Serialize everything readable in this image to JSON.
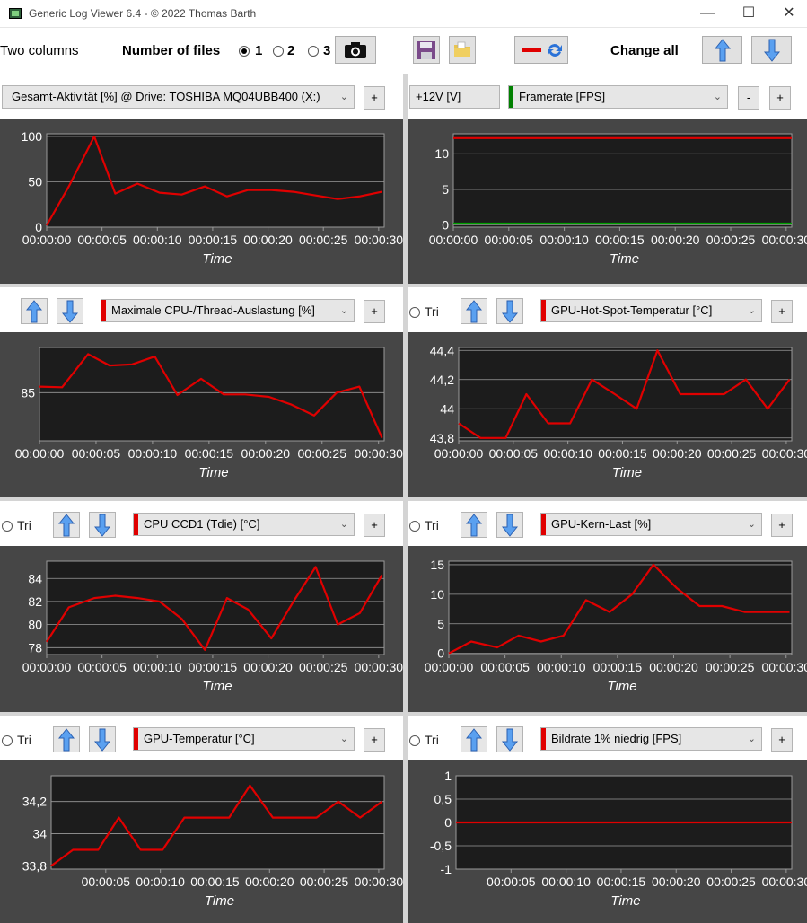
{
  "window": {
    "title": "Generic Log Viewer 6.4 - © 2022 Thomas Barth",
    "minimize": "—",
    "maximize": "☐",
    "close": "✕"
  },
  "toolbar": {
    "two_columns": "Two columns",
    "number_of_files": "Number of files",
    "files_options": [
      "1",
      "2",
      "3"
    ],
    "files_selected": "1",
    "change_all": "Change all"
  },
  "panels": [
    {
      "col": 0,
      "row": 0,
      "combo": "Gesamt-Aktivität [%] @ Drive: TOSHIBA MQ04UBB400 (X:)",
      "series_color": "#e00000",
      "plus": "+",
      "chart_data": {
        "type": "line",
        "xlabel": "Time",
        "x_ticks": [
          "00:00:00",
          "00:00:05",
          "00:00:10",
          "00:00:15",
          "00:00:20",
          "00:00:25",
          "00:00:30"
        ],
        "x_range": [
          0,
          30.5
        ],
        "y_ticks": [
          "0",
          "50",
          "100"
        ],
        "y_tick_values": [
          0,
          50,
          100
        ],
        "ylim": [
          0,
          103
        ],
        "x": [
          0,
          2,
          4.3,
          6.2,
          8.2,
          10.2,
          12.2,
          14.3,
          16.3,
          18.2,
          20.3,
          22.3,
          24.3,
          26.3,
          28.3,
          30.3
        ],
        "values": [
          2,
          45,
          100,
          37,
          48,
          38,
          36,
          45,
          34,
          41,
          41,
          39,
          35,
          31,
          34,
          39
        ]
      }
    },
    {
      "col": 1,
      "row": 0,
      "field": "+12V [V]",
      "combo": "Framerate [FPS]",
      "series_color": "#008000",
      "minus": "-",
      "plus": "+",
      "chart_data": {
        "type": "line",
        "xlabel": "Time",
        "x_ticks": [
          "00:00:00",
          "00:00:05",
          "00:00:10",
          "00:00:15",
          "00:00:20",
          "00:00:25",
          "00:00:30"
        ],
        "x_range": [
          0,
          30.5
        ],
        "y_ticks": [
          "0",
          "5",
          "10"
        ],
        "y_tick_values": [
          0,
          5,
          10
        ],
        "ylim": [
          -0.3,
          12.8
        ],
        "series": [
          {
            "color": "#e00000",
            "x": [
              0,
              30.5
            ],
            "values": [
              12.2,
              12.2
            ]
          },
          {
            "color": "#00a000",
            "x": [
              0,
              30.5
            ],
            "values": [
              0.2,
              0.2
            ]
          }
        ]
      }
    },
    {
      "col": 0,
      "row": 1,
      "combo": "Maximale CPU-/Thread-Auslastung [%]",
      "series_color": "#e00000",
      "plus": "+",
      "chart_data": {
        "type": "line",
        "xlabel": "Time",
        "x_ticks": [
          "00:00:00",
          "00:00:05",
          "00:00:10",
          "00:00:15",
          "00:00:20",
          "00:00:25",
          "00:00:30"
        ],
        "x_range": [
          0,
          30.5
        ],
        "y_ticks": [
          "85"
        ],
        "y_tick_values": [
          85
        ],
        "ylim": [
          77,
          92.5
        ],
        "x": [
          0,
          2,
          4.3,
          6.2,
          8.2,
          10.2,
          12.2,
          14.3,
          16.3,
          18.2,
          20.3,
          22.3,
          24.3,
          26.3,
          28.3,
          30.3
        ],
        "values": [
          86,
          85.9,
          91.4,
          89.5,
          89.7,
          91,
          84.6,
          87.3,
          84.7,
          84.7,
          84.3,
          83,
          81.2,
          85,
          86,
          77.5
        ]
      }
    },
    {
      "col": 1,
      "row": 1,
      "trig": "Tri",
      "combo": "GPU-Hot-Spot-Temperatur [°C]",
      "series_color": "#e00000",
      "plus": "+",
      "chart_data": {
        "type": "line",
        "xlabel": "Time",
        "x_ticks": [
          "00:00:00",
          "00:00:05",
          "00:00:10",
          "00:00:15",
          "00:00:20",
          "00:00:25",
          "00:00:30"
        ],
        "x_range": [
          0,
          30.5
        ],
        "y_ticks": [
          "43,8",
          "44",
          "44,2",
          "44,4"
        ],
        "y_tick_values": [
          43.8,
          44,
          44.2,
          44.4
        ],
        "ylim": [
          43.78,
          44.42
        ],
        "x": [
          0,
          2,
          4.3,
          6.2,
          8.2,
          10.2,
          12.2,
          14.3,
          16.3,
          18.2,
          20.3,
          22.3,
          24.3,
          26.3,
          28.3,
          30.3
        ],
        "values": [
          43.9,
          43.8,
          43.8,
          44.1,
          43.9,
          43.9,
          44.2,
          44.1,
          44,
          44.4,
          44.1,
          44.1,
          44.1,
          44.2,
          44,
          44.2
        ]
      }
    },
    {
      "col": 0,
      "row": 2,
      "trig": "Tri",
      "combo": "CPU CCD1 (Tdie) [°C]",
      "series_color": "#e00000",
      "plus": "+",
      "chart_data": {
        "type": "line",
        "xlabel": "Time",
        "x_ticks": [
          "00:00:00",
          "00:00:05",
          "00:00:10",
          "00:00:15",
          "00:00:20",
          "00:00:25",
          "00:00:30"
        ],
        "x_range": [
          0,
          30.5
        ],
        "y_ticks": [
          "78",
          "80",
          "82",
          "84"
        ],
        "y_tick_values": [
          78,
          80,
          82,
          84
        ],
        "ylim": [
          77.4,
          85.5
        ],
        "x": [
          0,
          2,
          4.3,
          6.2,
          8.2,
          10.2,
          12.2,
          14.3,
          16.3,
          18.2,
          20.3,
          22.3,
          24.3,
          26.3,
          28.3,
          30.3
        ],
        "values": [
          78.5,
          81.5,
          82.3,
          82.5,
          82.3,
          82,
          80.5,
          77.8,
          82.3,
          81.3,
          78.8,
          82,
          85,
          80,
          81,
          84.3
        ]
      }
    },
    {
      "col": 1,
      "row": 2,
      "trig": "Tri",
      "combo": "GPU-Kern-Last [%]",
      "series_color": "#e00000",
      "plus": "+",
      "chart_data": {
        "type": "line",
        "xlabel": "Time",
        "x_ticks": [
          "00:00:00",
          "00:00:05",
          "00:00:10",
          "00:00:15",
          "00:00:20",
          "00:00:25",
          "00:00:30"
        ],
        "x_range": [
          0,
          30.5
        ],
        "y_ticks": [
          "0",
          "5",
          "10",
          "15"
        ],
        "y_tick_values": [
          0,
          5,
          10,
          15
        ],
        "ylim": [
          -0.2,
          15.6
        ],
        "x": [
          0,
          2,
          4.3,
          6.2,
          8.2,
          10.2,
          12.2,
          14.3,
          16.3,
          18.2,
          20.3,
          22.3,
          24.3,
          26.3,
          28.3,
          30.3
        ],
        "values": [
          0,
          2,
          1,
          3,
          2,
          3,
          9,
          7,
          10,
          15,
          11,
          8,
          8,
          7,
          7,
          7
        ]
      }
    },
    {
      "col": 0,
      "row": 3,
      "trig": "Tri",
      "combo": "GPU-Temperatur [°C]",
      "series_color": "#e00000",
      "plus": "+",
      "chart_data": {
        "type": "line",
        "xlabel": "Time",
        "x_ticks": [
          "00:00:05",
          "00:00:10",
          "00:00:15",
          "00:00:20",
          "00:00:25",
          "00:00:30"
        ],
        "x_tick_values": [
          5,
          10,
          15,
          20,
          25,
          30
        ],
        "x_range": [
          0,
          30.5
        ],
        "y_ticks": [
          "33,8",
          "34",
          "34,2"
        ],
        "y_tick_values": [
          33.8,
          34,
          34.2
        ],
        "ylim": [
          33.78,
          34.36
        ],
        "x": [
          0,
          2,
          4.3,
          6.2,
          8.2,
          10.2,
          12.2,
          14.3,
          16.3,
          18.2,
          20.3,
          22.3,
          24.3,
          26.3,
          28.3,
          30.3
        ],
        "values": [
          33.8,
          33.9,
          33.9,
          34.1,
          33.9,
          33.9,
          34.1,
          34.1,
          34.1,
          34.3,
          34.1,
          34.1,
          34.1,
          34.2,
          34.1,
          34.2
        ]
      }
    },
    {
      "col": 1,
      "row": 3,
      "trig": "Tri",
      "combo": "Bildrate 1% niedrig [FPS]",
      "series_color": "#e00000",
      "plus": "+",
      "chart_data": {
        "type": "line",
        "xlabel": "Time",
        "x_ticks": [
          "00:00:05",
          "00:00:10",
          "00:00:15",
          "00:00:20",
          "00:00:25",
          "00:00:30"
        ],
        "x_tick_values": [
          5,
          10,
          15,
          20,
          25,
          30
        ],
        "x_range": [
          0,
          30.5
        ],
        "y_ticks": [
          "-1",
          "-0,5",
          "0",
          "0,5",
          "1"
        ],
        "y_tick_values": [
          -1,
          -0.5,
          0,
          0.5,
          1
        ],
        "ylim": [
          -1,
          1
        ],
        "x": [
          0,
          30.5
        ],
        "values": [
          0,
          0
        ]
      }
    }
  ]
}
